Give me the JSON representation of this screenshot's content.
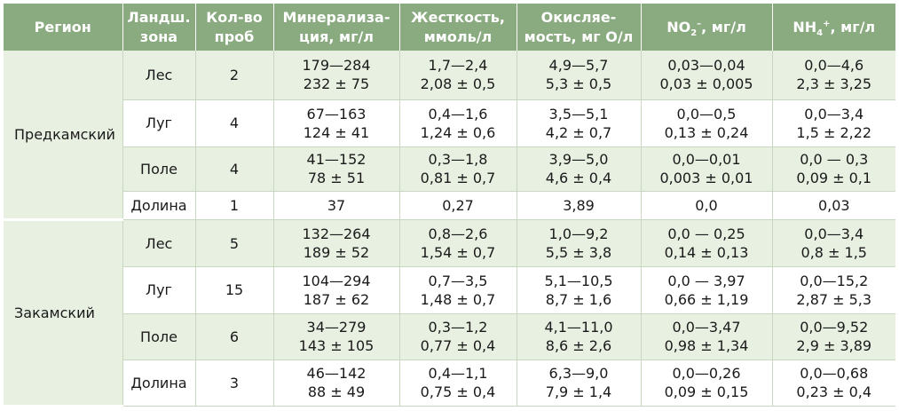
{
  "headers": {
    "region": [
      "Регион"
    ],
    "zone": [
      "Ландш.",
      "зона"
    ],
    "samples": [
      "Кол-во",
      "проб"
    ],
    "mineral": [
      "Минерализа-",
      "ция, мг/л"
    ],
    "hardness": [
      "Жесткость,",
      "ммоль/л"
    ],
    "oxid": [
      "Окисляе-",
      "мость, мг О/л"
    ],
    "no2": {
      "pre": "NO",
      "sub": "2",
      "sup": "–",
      "post": ", мг/л"
    },
    "nh4": {
      "pre": "NH",
      "sub": "4",
      "sup": "+",
      "post": ", мг/л"
    }
  },
  "regions": [
    "Предкамский",
    "Закамский"
  ],
  "rows": [
    {
      "zone": "Лес",
      "n": "2",
      "m": [
        "179—284",
        "232 ± 75"
      ],
      "h": [
        "1,7—2,4",
        "2,08 ± 0,5"
      ],
      "o": [
        "4,9—5,7",
        "5,3 ± 0,5"
      ],
      "no2": [
        "0,03—0,04",
        "0,03 ± 0,005"
      ],
      "nh4": [
        "0,0—4,6",
        "2,3 ± 3,25"
      ]
    },
    {
      "zone": "Луг",
      "n": "4",
      "m": [
        "67—163",
        "124 ± 41"
      ],
      "h": [
        "0,4—1,6",
        "1,24 ± 0,6"
      ],
      "o": [
        "3,5—5,1",
        "4,2 ± 0,7"
      ],
      "no2": [
        "0,0—0,5",
        "0,13 ± 0,24"
      ],
      "nh4": [
        "0,0—3,4",
        "1,5 ± 2,22"
      ]
    },
    {
      "zone": "Поле",
      "n": "4",
      "m": [
        "41—152",
        "78 ± 51"
      ],
      "h": [
        "0,3—1,8",
        "0,81 ± 0,7"
      ],
      "o": [
        "3,9—5,0",
        "4,6 ± 0,4"
      ],
      "no2": [
        "0,0—0,01",
        "0,003 ± 0,01"
      ],
      "nh4": [
        "0,0 — 0,3",
        "0,09 ± 0,1"
      ]
    },
    {
      "zone": "Долина",
      "n": "1",
      "m": [
        "37"
      ],
      "h": [
        "0,27"
      ],
      "o": [
        "3,89"
      ],
      "no2": [
        "0,0"
      ],
      "nh4": [
        "0,03"
      ]
    },
    {
      "zone": "Лес",
      "n": "5",
      "m": [
        "132—264",
        "189 ± 52"
      ],
      "h": [
        "0,8—2,6",
        "1,54 ± 0,7"
      ],
      "o": [
        "1,0—9,2",
        "5,5 ± 3,8"
      ],
      "no2": [
        "0,0 — 0,25",
        "0,14 ± 0,13"
      ],
      "nh4": [
        "0,0—3,4",
        "0,8 ± 1,5"
      ]
    },
    {
      "zone": "Луг",
      "n": "15",
      "m": [
        "104—294",
        "187 ± 62"
      ],
      "h": [
        "0,7—3,5",
        "1,48 ± 0,7"
      ],
      "o": [
        "5,1—10,5",
        "8,7 ± 1,6"
      ],
      "no2": [
        "0,0 — 3,97",
        "0,66 ± 1,19"
      ],
      "nh4": [
        "0,0—15,2",
        "2,87 ± 5,3"
      ]
    },
    {
      "zone": "Поле",
      "n": "6",
      "m": [
        "34—279",
        "143 ± 105"
      ],
      "h": [
        "0,3—1,2",
        "0,77 ± 0,4"
      ],
      "o": [
        "4,1—11,0",
        "8,6 ± 2,6"
      ],
      "no2": [
        "0,0—3,47",
        "0,98 ± 1,34"
      ],
      "nh4": [
        "0,0—9,52",
        "2,9 ± 3,89"
      ]
    },
    {
      "zone": "Долина",
      "n": "3",
      "m": [
        "46—142",
        "88 ± 49"
      ],
      "h": [
        "0,4—1,1",
        "0,75 ± 0,4"
      ],
      "o": [
        "6,3—9,0",
        "7,9 ± 1,4"
      ],
      "no2": [
        "0,0—0,26",
        "0,09 ± 0,15"
      ],
      "nh4": [
        "0,0—0,68",
        "0,23 ± 0,4"
      ]
    }
  ]
}
